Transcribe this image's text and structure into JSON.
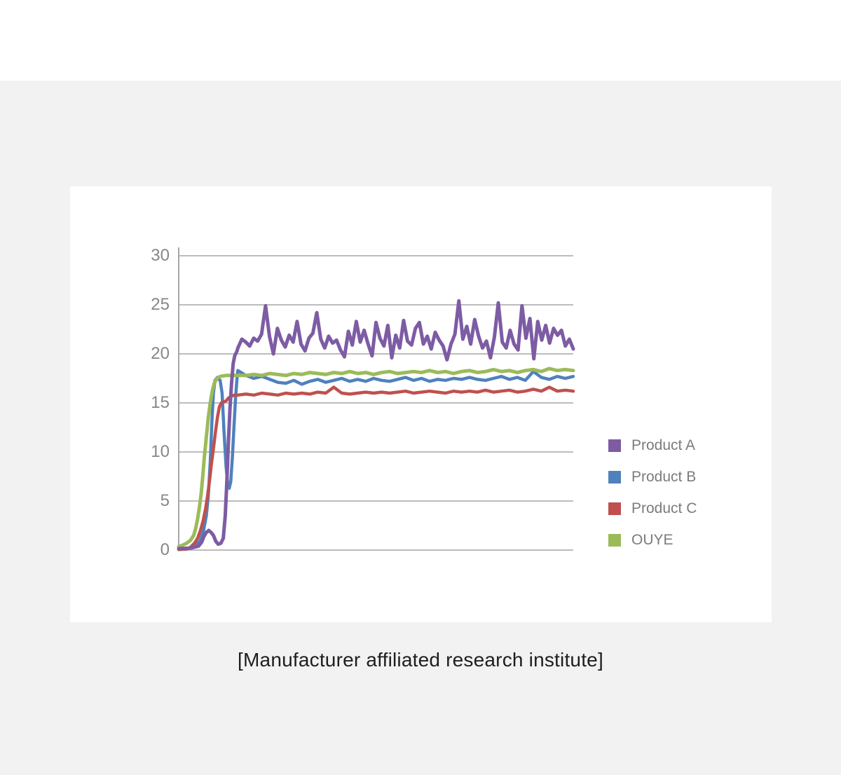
{
  "page": {
    "caption": "[Manufacturer affiliated research institute]"
  },
  "chart_data": {
    "type": "line",
    "title": "",
    "xlabel": "",
    "ylabel": "",
    "xlim": [
      0,
      100
    ],
    "ylim": [
      0,
      30
    ],
    "yticks": [
      0,
      5,
      10,
      15,
      20,
      25,
      30
    ],
    "x_tick_labels_visible": false,
    "grid": true,
    "grid_color": "#bcbcbc",
    "axis_color": "#a6a6a6",
    "legend_position": "right",
    "series": [
      {
        "name": "Product A",
        "color": "#7d5ca4",
        "line_width": 5,
        "z": 4,
        "rise": [
          [
            0,
            0.15
          ],
          [
            3,
            0.2
          ],
          [
            5,
            0.4
          ],
          [
            5.8,
            0.8
          ],
          [
            6.4,
            1.4
          ],
          [
            7,
            1.8
          ],
          [
            7.6,
            2.0
          ],
          [
            8.2,
            1.8
          ],
          [
            8.8,
            1.5
          ],
          [
            9.4,
            0.9
          ],
          [
            10,
            0.6
          ],
          [
            10.7,
            0.7
          ],
          [
            11.3,
            1.2
          ],
          [
            11.8,
            3.5
          ],
          [
            12.2,
            7
          ],
          [
            12.6,
            11
          ],
          [
            13,
            14.5
          ],
          [
            13.4,
            17
          ],
          [
            13.8,
            19
          ],
          [
            14.2,
            19.8
          ],
          [
            14.8,
            20.3
          ]
        ],
        "steady_x0": 15,
        "steady": [
          20.6,
          21.5,
          21.2,
          20.8,
          21.6,
          21.3,
          22.0,
          24.9,
          21.8,
          20.0,
          22.6,
          21.4,
          20.7,
          21.9,
          21.2,
          23.3,
          21.0,
          20.3,
          21.6,
          22.1,
          24.2,
          21.5,
          20.6,
          21.8,
          21.1,
          21.4,
          20.4,
          19.7,
          22.3,
          20.9,
          23.3,
          21.2,
          22.4,
          21.0,
          19.8,
          23.2,
          21.6,
          20.8,
          22.9,
          19.6,
          21.9,
          20.6,
          23.4,
          21.3,
          20.9,
          22.6,
          23.2,
          21.0,
          21.8,
          20.5,
          22.2,
          21.4,
          20.8,
          19.4,
          21.0,
          22.0,
          25.4,
          21.5,
          22.8,
          21.0,
          23.5,
          21.8,
          20.6,
          21.3,
          19.6,
          21.7,
          25.2,
          21.2,
          20.6,
          22.4,
          21.0,
          20.4,
          24.9,
          21.6,
          23.6,
          19.5,
          23.3,
          21.4,
          22.9,
          21.1,
          22.6,
          21.9,
          22.4,
          20.8,
          21.5,
          20.5
        ]
      },
      {
        "name": "Product B",
        "color": "#4f81bd",
        "line_width": 4.5,
        "z": 1,
        "rise": [
          [
            0,
            0.1
          ],
          [
            3,
            0.2
          ],
          [
            4.5,
            0.5
          ],
          [
            5.5,
            1.0
          ],
          [
            6.3,
            2
          ],
          [
            7,
            3.5
          ],
          [
            7.5,
            5.5
          ],
          [
            8,
            9
          ],
          [
            8.4,
            13
          ],
          [
            8.8,
            16
          ],
          [
            9.2,
            17.3
          ],
          [
            9.8,
            17.6
          ],
          [
            10.5,
            17.3
          ],
          [
            11,
            16
          ],
          [
            11.5,
            12
          ],
          [
            12,
            8.5
          ],
          [
            12.4,
            6.8
          ],
          [
            12.8,
            6.3
          ],
          [
            13.2,
            7
          ],
          [
            13.6,
            9.5
          ],
          [
            14,
            12.5
          ],
          [
            14.4,
            15.5
          ],
          [
            14.8,
            17.6
          ]
        ],
        "steady_x0": 15,
        "steady": [
          18.3,
          17.8,
          17.5,
          17.7,
          17.4,
          17.1,
          17.0,
          17.3,
          16.9,
          17.2,
          17.4,
          17.1,
          17.3,
          17.5,
          17.2,
          17.4,
          17.2,
          17.5,
          17.3,
          17.2,
          17.4,
          17.6,
          17.3,
          17.5,
          17.2,
          17.4,
          17.3,
          17.5,
          17.4,
          17.6,
          17.4,
          17.3,
          17.5,
          17.7,
          17.4,
          17.6,
          17.3,
          18.2,
          17.6,
          17.4,
          17.7,
          17.5,
          17.7
        ]
      },
      {
        "name": "Product C",
        "color": "#c0504d",
        "line_width": 4.5,
        "z": 2,
        "rise": [
          [
            0,
            0.05
          ],
          [
            2,
            0.1
          ],
          [
            3,
            0.3
          ],
          [
            4,
            0.7
          ],
          [
            4.8,
            1.2
          ],
          [
            5.5,
            2
          ],
          [
            6.2,
            3
          ],
          [
            6.8,
            4.2
          ],
          [
            7.3,
            5.5
          ],
          [
            7.8,
            7
          ],
          [
            8.3,
            8.8
          ],
          [
            8.8,
            10.3
          ],
          [
            9.3,
            12
          ],
          [
            9.8,
            13.5
          ],
          [
            10.3,
            14.6
          ],
          [
            10.8,
            15.0
          ],
          [
            11.4,
            15.1
          ],
          [
            12,
            15.2
          ],
          [
            12.6,
            15.5
          ],
          [
            13.4,
            15.7
          ],
          [
            14.2,
            15.8
          ]
        ],
        "steady_x0": 15,
        "steady": [
          15.8,
          15.9,
          15.8,
          16.0,
          15.9,
          15.8,
          16.0,
          15.9,
          16.0,
          15.9,
          16.1,
          16.0,
          16.6,
          16.0,
          15.9,
          16.0,
          16.1,
          16.0,
          16.1,
          16.0,
          16.1,
          16.2,
          16.0,
          16.1,
          16.2,
          16.1,
          16.0,
          16.2,
          16.1,
          16.2,
          16.1,
          16.3,
          16.1,
          16.2,
          16.3,
          16.1,
          16.2,
          16.4,
          16.2,
          16.6,
          16.2,
          16.3,
          16.2
        ]
      },
      {
        "name": "OUYE",
        "color": "#9bbb59",
        "line_width": 5,
        "z": 3,
        "rise": [
          [
            0,
            0.35
          ],
          [
            1,
            0.5
          ],
          [
            2,
            0.7
          ],
          [
            3,
            1.0
          ],
          [
            3.8,
            1.5
          ],
          [
            4.3,
            2.2
          ],
          [
            4.8,
            3.2
          ],
          [
            5.3,
            4.5
          ],
          [
            5.7,
            5.8
          ],
          [
            6.1,
            7.5
          ],
          [
            6.5,
            9.5
          ],
          [
            7,
            11.5
          ],
          [
            7.5,
            13.5
          ],
          [
            8,
            15
          ],
          [
            8.5,
            16.2
          ],
          [
            9,
            17
          ],
          [
            9.7,
            17.5
          ],
          [
            10.5,
            17.7
          ],
          [
            12,
            17.8
          ],
          [
            13.5,
            17.8
          ]
        ],
        "steady_x0": 15,
        "steady": [
          17.8,
          17.8,
          17.9,
          17.8,
          18.0,
          17.9,
          17.8,
          18.0,
          17.9,
          18.1,
          18.0,
          17.9,
          18.1,
          18.0,
          18.2,
          18.0,
          18.1,
          17.9,
          18.1,
          18.2,
          18.0,
          18.1,
          18.2,
          18.1,
          18.3,
          18.1,
          18.2,
          18.0,
          18.2,
          18.3,
          18.1,
          18.2,
          18.4,
          18.2,
          18.3,
          18.1,
          18.3,
          18.4,
          18.2,
          18.5,
          18.3,
          18.4,
          18.3
        ]
      }
    ]
  }
}
